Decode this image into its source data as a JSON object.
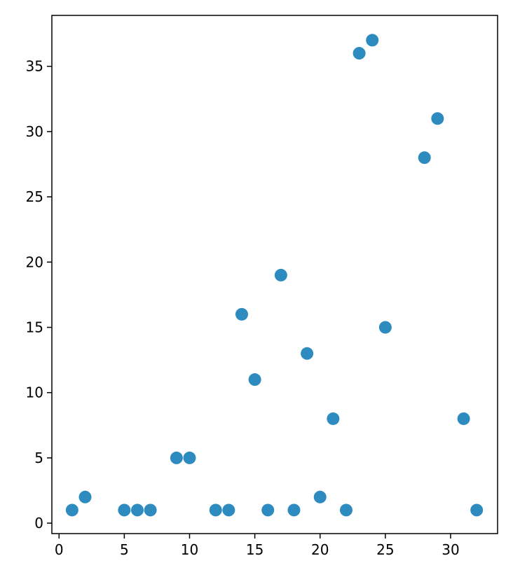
{
  "chart_data": {
    "type": "scatter",
    "color": "#2e8bc0",
    "x": [
      1,
      2,
      5,
      6,
      7,
      9,
      10,
      12,
      13,
      14,
      15,
      16,
      17,
      18,
      19,
      20,
      21,
      22,
      23,
      24,
      25,
      28,
      29,
      31,
      32
    ],
    "values": [
      1,
      2,
      1,
      1,
      1,
      5,
      5,
      1,
      1,
      16,
      11,
      1,
      19,
      1,
      13,
      2,
      8,
      1,
      36,
      37,
      15,
      28,
      31,
      8,
      1
    ],
    "xlim": [
      -0.55,
      33.6
    ],
    "ylim": [
      -0.8,
      38.9
    ],
    "xticks": [
      0,
      5,
      10,
      15,
      20,
      25,
      30
    ],
    "yticks": [
      0,
      5,
      10,
      15,
      20,
      25,
      30,
      35
    ]
  }
}
